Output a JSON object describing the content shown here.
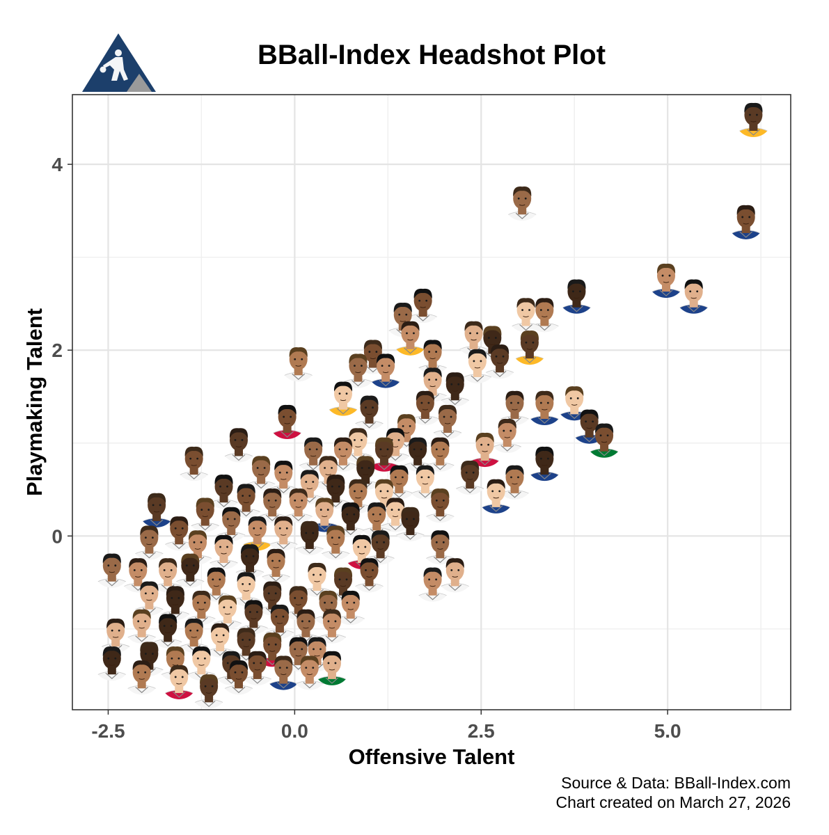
{
  "chart_data": {
    "type": "scatter",
    "title": "BBall-Index Headshot Plot",
    "xlabel": "Offensive Talent",
    "ylabel": "Playmaking Talent",
    "xlim": [
      -2.98,
      6.65
    ],
    "ylim": [
      -1.87,
      4.75
    ],
    "x_ticks": [
      -2.5,
      0.0,
      2.5,
      5.0
    ],
    "x_tick_labels": [
      "-2.5",
      "0.0",
      "2.5",
      "5.0"
    ],
    "y_ticks": [
      0,
      2,
      4
    ],
    "y_tick_labels": [
      "0",
      "2",
      "4"
    ],
    "grid": true,
    "marker": "player headshot",
    "caption_lines": [
      "Source & Data: BBall-Index.com",
      "Chart created on March 27, 2026"
    ],
    "points": [
      {
        "x": 6.15,
        "y": 4.45,
        "jersey": "#fdb927"
      },
      {
        "x": 6.05,
        "y": 3.35,
        "jersey": "#1d428a"
      },
      {
        "x": 3.05,
        "y": 3.55,
        "jersey": "#f5f5f5"
      },
      {
        "x": 4.98,
        "y": 2.72,
        "jersey": "#1d428a"
      },
      {
        "x": 5.35,
        "y": 2.55,
        "jersey": "#1d428a"
      },
      {
        "x": 3.78,
        "y": 2.55,
        "jersey": "#1d428a"
      },
      {
        "x": 3.35,
        "y": 2.35,
        "jersey": "#f5f5f5"
      },
      {
        "x": 3.1,
        "y": 2.35,
        "jersey": "#f5f5f5"
      },
      {
        "x": 3.15,
        "y": 2.0,
        "jersey": "#fdb927"
      },
      {
        "x": 1.72,
        "y": 2.45,
        "jersey": "#f5f5f5"
      },
      {
        "x": 1.45,
        "y": 2.3,
        "jersey": "#f5f5f5"
      },
      {
        "x": 1.55,
        "y": 2.1,
        "jersey": "#fdb927"
      },
      {
        "x": 2.4,
        "y": 2.1,
        "jersey": "#f5f5f5"
      },
      {
        "x": 2.65,
        "y": 2.05,
        "jersey": "#f5f5f5"
      },
      {
        "x": 1.85,
        "y": 1.9,
        "jersey": "#f5f5f5"
      },
      {
        "x": 2.45,
        "y": 1.8,
        "jersey": "#f5f5f5"
      },
      {
        "x": 2.75,
        "y": 1.85,
        "jersey": "#f5f5f5"
      },
      {
        "x": 1.05,
        "y": 1.9,
        "jersey": "#f5f5f5"
      },
      {
        "x": 0.85,
        "y": 1.75,
        "jersey": "#f5f5f5"
      },
      {
        "x": 1.22,
        "y": 1.75,
        "jersey": "#1d428a"
      },
      {
        "x": 1.85,
        "y": 1.6,
        "jersey": "#f5f5f5"
      },
      {
        "x": 2.15,
        "y": 1.55,
        "jersey": "#f5f5f5"
      },
      {
        "x": 3.35,
        "y": 1.35,
        "jersey": "#1d428a"
      },
      {
        "x": 3.75,
        "y": 1.4,
        "jersey": "#1d428a"
      },
      {
        "x": 3.95,
        "y": 1.15,
        "jersey": "#1d428a"
      },
      {
        "x": 4.15,
        "y": 1.0,
        "jersey": "#007a33"
      },
      {
        "x": 2.95,
        "y": 1.35,
        "jersey": "#f5f5f5"
      },
      {
        "x": 2.85,
        "y": 1.05,
        "jersey": "#f5f5f5"
      },
      {
        "x": 2.55,
        "y": 0.9,
        "jersey": "#ce1141"
      },
      {
        "x": 3.35,
        "y": 0.75,
        "jersey": "#1d428a"
      },
      {
        "x": 2.95,
        "y": 0.55,
        "jersey": "#f5f5f5"
      },
      {
        "x": 2.7,
        "y": 0.4,
        "jersey": "#1d428a"
      },
      {
        "x": 2.35,
        "y": 0.6,
        "jersey": "#f5f5f5"
      },
      {
        "x": 1.95,
        "y": 0.3,
        "jersey": "#f5f5f5"
      },
      {
        "x": 1.95,
        "y": -0.15,
        "jersey": "#f5f5f5"
      },
      {
        "x": 1.85,
        "y": -0.55,
        "jersey": "#f5f5f5"
      },
      {
        "x": 2.15,
        "y": -0.45,
        "jersey": "#f5f5f5"
      },
      {
        "x": 1.55,
        "y": 0.1,
        "jersey": "#f5f5f5"
      },
      {
        "x": 0.05,
        "y": 1.82,
        "jersey": "#f5f5f5"
      },
      {
        "x": 0.65,
        "y": 1.45,
        "jersey": "#fdb927"
      },
      {
        "x": 1.0,
        "y": 1.3,
        "jersey": "#f5f5f5"
      },
      {
        "x": 1.75,
        "y": 1.35,
        "jersey": "#f5f5f5"
      },
      {
        "x": 2.05,
        "y": 1.2,
        "jersey": "#f5f5f5"
      },
      {
        "x": 1.5,
        "y": 1.1,
        "jersey": "#f5f5f5"
      },
      {
        "x": 1.35,
        "y": 0.95,
        "jersey": "#f5f5f5"
      },
      {
        "x": 1.65,
        "y": 0.85,
        "jersey": "#f5f5f5"
      },
      {
        "x": 1.95,
        "y": 0.85,
        "jersey": "#f5f5f5"
      },
      {
        "x": 0.85,
        "y": 0.95,
        "jersey": "#f5f5f5"
      },
      {
        "x": 1.2,
        "y": 0.85,
        "jersey": "#ce1141"
      },
      {
        "x": -0.1,
        "y": 1.2,
        "jersey": "#ce1141"
      },
      {
        "x": 0.25,
        "y": 0.85,
        "jersey": "#f5f5f5"
      },
      {
        "x": 0.65,
        "y": 0.85,
        "jersey": "#f5f5f5"
      },
      {
        "x": 0.45,
        "y": 0.65,
        "jersey": "#f5f5f5"
      },
      {
        "x": 0.95,
        "y": 0.65,
        "jersey": "#f5f5f5"
      },
      {
        "x": 1.4,
        "y": 0.55,
        "jersey": "#f5f5f5"
      },
      {
        "x": 1.75,
        "y": 0.55,
        "jersey": "#f5f5f5"
      },
      {
        "x": -0.75,
        "y": 0.95,
        "jersey": "#f5f5f5"
      },
      {
        "x": -1.35,
        "y": 0.75,
        "jersey": "#f5f5f5"
      },
      {
        "x": -0.45,
        "y": 0.65,
        "jersey": "#f5f5f5"
      },
      {
        "x": -0.15,
        "y": 0.6,
        "jersey": "#f5f5f5"
      },
      {
        "x": 0.2,
        "y": 0.5,
        "jersey": "#f5f5f5"
      },
      {
        "x": 0.55,
        "y": 0.45,
        "jersey": "#f5f5f5"
      },
      {
        "x": 0.85,
        "y": 0.4,
        "jersey": "#f5f5f5"
      },
      {
        "x": 1.2,
        "y": 0.4,
        "jersey": "#f5f5f5"
      },
      {
        "x": -0.95,
        "y": 0.45,
        "jersey": "#f5f5f5"
      },
      {
        "x": -0.65,
        "y": 0.35,
        "jersey": "#f5f5f5"
      },
      {
        "x": -0.3,
        "y": 0.3,
        "jersey": "#f5f5f5"
      },
      {
        "x": 0.05,
        "y": 0.3,
        "jersey": "#f5f5f5"
      },
      {
        "x": 0.4,
        "y": 0.2,
        "jersey": "#1d428a"
      },
      {
        "x": 0.75,
        "y": 0.15,
        "jersey": "#f5f5f5"
      },
      {
        "x": 1.1,
        "y": 0.15,
        "jersey": "#f5f5f5"
      },
      {
        "x": 1.35,
        "y": 0.2,
        "jersey": "#f5f5f5"
      },
      {
        "x": -1.85,
        "y": 0.25,
        "jersey": "#1d428a"
      },
      {
        "x": -1.2,
        "y": 0.2,
        "jersey": "#f5f5f5"
      },
      {
        "x": -0.85,
        "y": 0.1,
        "jersey": "#f5f5f5"
      },
      {
        "x": -0.5,
        "y": 0.0,
        "jersey": "#fdb927"
      },
      {
        "x": -0.15,
        "y": 0.0,
        "jersey": "#f5f5f5"
      },
      {
        "x": 0.2,
        "y": -0.05,
        "jersey": "#f5f5f5"
      },
      {
        "x": 0.55,
        "y": -0.1,
        "jersey": "#f5f5f5"
      },
      {
        "x": 0.9,
        "y": -0.2,
        "jersey": "#ce1141"
      },
      {
        "x": 1.15,
        "y": -0.15,
        "jersey": "#f5f5f5"
      },
      {
        "x": -1.55,
        "y": 0.0,
        "jersey": "#f5f5f5"
      },
      {
        "x": -1.95,
        "y": -0.1,
        "jersey": "#f5f5f5"
      },
      {
        "x": -1.3,
        "y": -0.15,
        "jersey": "#f5f5f5"
      },
      {
        "x": -0.95,
        "y": -0.2,
        "jersey": "#f5f5f5"
      },
      {
        "x": -0.6,
        "y": -0.3,
        "jersey": "#f5f5f5"
      },
      {
        "x": -0.25,
        "y": -0.35,
        "jersey": "#f5f5f5"
      },
      {
        "x": 0.3,
        "y": -0.5,
        "jersey": "#f5f5f5"
      },
      {
        "x": 0.65,
        "y": -0.55,
        "jersey": "#f5f5f5"
      },
      {
        "x": 1.0,
        "y": -0.45,
        "jersey": "#f5f5f5"
      },
      {
        "x": -2.45,
        "y": -0.4,
        "jersey": "#f5f5f5"
      },
      {
        "x": -2.1,
        "y": -0.45,
        "jersey": "#f5f5f5"
      },
      {
        "x": -1.7,
        "y": -0.45,
        "jersey": "#f5f5f5"
      },
      {
        "x": -1.4,
        "y": -0.4,
        "jersey": "#f5f5f5"
      },
      {
        "x": -1.05,
        "y": -0.55,
        "jersey": "#f5f5f5"
      },
      {
        "x": -0.65,
        "y": -0.6,
        "jersey": "#f5f5f5"
      },
      {
        "x": -0.3,
        "y": -0.7,
        "jersey": "#f5f5f5"
      },
      {
        "x": 0.05,
        "y": -0.75,
        "jersey": "#f5f5f5"
      },
      {
        "x": 0.45,
        "y": -0.8,
        "jersey": "#f5f5f5"
      },
      {
        "x": 0.75,
        "y": -0.8,
        "jersey": "#f5f5f5"
      },
      {
        "x": -1.95,
        "y": -0.7,
        "jersey": "#f5f5f5"
      },
      {
        "x": -1.6,
        "y": -0.75,
        "jersey": "#f5f5f5"
      },
      {
        "x": -1.25,
        "y": -0.8,
        "jersey": "#f5f5f5"
      },
      {
        "x": -0.9,
        "y": -0.85,
        "jersey": "#f5f5f5"
      },
      {
        "x": -0.55,
        "y": -0.9,
        "jersey": "#f5f5f5"
      },
      {
        "x": -0.2,
        "y": -0.95,
        "jersey": "#f5f5f5"
      },
      {
        "x": 0.15,
        "y": -1.0,
        "jersey": "#f5f5f5"
      },
      {
        "x": 0.5,
        "y": -1.0,
        "jersey": "#f5f5f5"
      },
      {
        "x": -2.05,
        "y": -1.0,
        "jersey": "#f5f5f5"
      },
      {
        "x": -1.7,
        "y": -1.05,
        "jersey": "#f5f5f5"
      },
      {
        "x": -1.35,
        "y": -1.1,
        "jersey": "#f5f5f5"
      },
      {
        "x": -1.0,
        "y": -1.15,
        "jersey": "#f5f5f5"
      },
      {
        "x": -0.65,
        "y": -1.2,
        "jersey": "#f5f5f5"
      },
      {
        "x": -0.3,
        "y": -1.25,
        "jersey": "#ce1141"
      },
      {
        "x": 0.05,
        "y": -1.3,
        "jersey": "#f5f5f5"
      },
      {
        "x": 0.3,
        "y": -1.3,
        "jersey": "#f5f5f5"
      },
      {
        "x": -2.4,
        "y": -1.1,
        "jersey": "#f5f5f5"
      },
      {
        "x": -1.95,
        "y": -1.35,
        "jersey": "#f5f5f5"
      },
      {
        "x": -1.6,
        "y": -1.4,
        "jersey": "#f5f5f5"
      },
      {
        "x": -1.25,
        "y": -1.4,
        "jersey": "#f5f5f5"
      },
      {
        "x": -0.85,
        "y": -1.45,
        "jersey": "#f5f5f5"
      },
      {
        "x": -0.5,
        "y": -1.45,
        "jersey": "#f5f5f5"
      },
      {
        "x": -0.15,
        "y": -1.5,
        "jersey": "#1d428a"
      },
      {
        "x": 0.2,
        "y": -1.5,
        "jersey": "#f5f5f5"
      },
      {
        "x": 0.5,
        "y": -1.45,
        "jersey": "#007a33"
      },
      {
        "x": -2.45,
        "y": -1.4,
        "jersey": "#f5f5f5"
      },
      {
        "x": -2.05,
        "y": -1.55,
        "jersey": "#f5f5f5"
      },
      {
        "x": -1.55,
        "y": -1.6,
        "jersey": "#ce1141"
      },
      {
        "x": -1.15,
        "y": -1.7,
        "jersey": "#f5f5f5"
      },
      {
        "x": -0.75,
        "y": -1.55,
        "jersey": "#f5f5f5"
      }
    ]
  }
}
